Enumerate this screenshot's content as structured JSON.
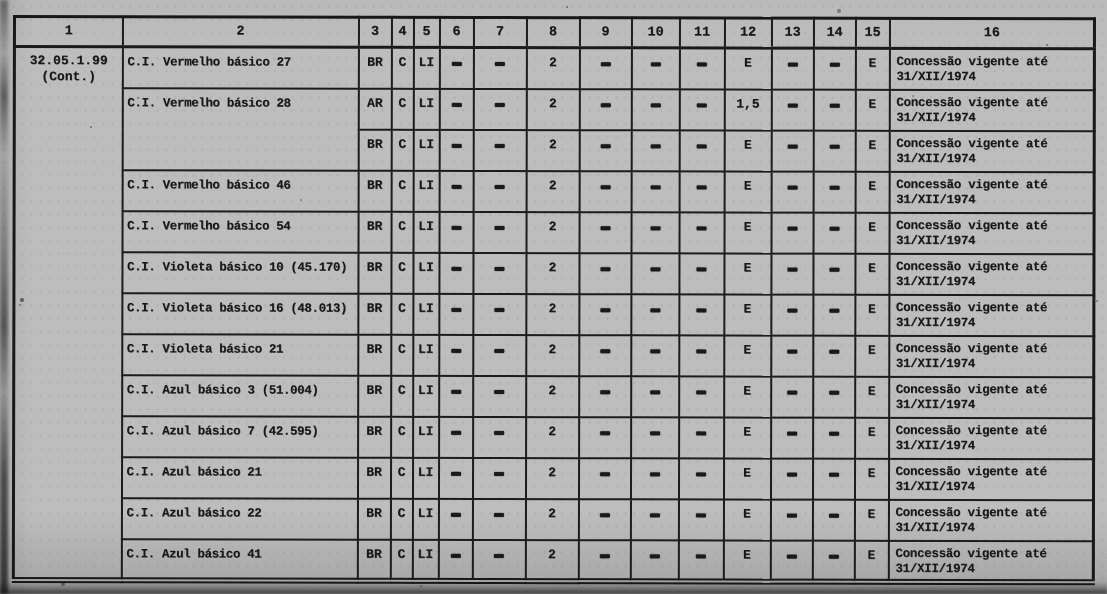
{
  "colors": {
    "paper": "#bdbdbd",
    "ink": "#1a1a1a"
  },
  "document": {
    "ref_code": {
      "line1": "32.05.1.99",
      "line2": "(Cont.)"
    },
    "column_headers": [
      "1",
      "2",
      "3",
      "4",
      "5",
      "6",
      "7",
      "8",
      "9",
      "10",
      "11",
      "12",
      "13",
      "14",
      "15",
      "16"
    ],
    "rows": [
      {
        "name": "C.I. Vermelho básico 27",
        "name_rowspan": 1,
        "values": [
          "BR",
          "C",
          "LI",
          "-",
          "-",
          "2",
          "-",
          "-",
          "-",
          "E",
          "-",
          "-",
          "E"
        ],
        "note_line1": "Concessão vigente até",
        "note_line2": "31/XII/1974"
      },
      {
        "name": "C.I. Vermelho básico 28",
        "name_rowspan": 2,
        "values": [
          "AR",
          "C",
          "LI",
          "-",
          "-",
          "2",
          "-",
          "-",
          "-",
          "1,5",
          "-",
          "-",
          "E"
        ],
        "note_line1": "Concessão vigente até",
        "note_line2": "31/XII/1974"
      },
      {
        "name": null,
        "name_rowspan": 0,
        "values": [
          "BR",
          "C",
          "LI",
          "-",
          "-",
          "2",
          "-",
          "-",
          "-",
          "E",
          "-",
          "-",
          "E"
        ],
        "note_line1": "Concessão vigente até",
        "note_line2": "31/XII/1974"
      },
      {
        "name": "C.I. Vermelho básico 46",
        "name_rowspan": 1,
        "values": [
          "BR",
          "C",
          "LI",
          "-",
          "-",
          "2",
          "-",
          "-",
          "-",
          "E",
          "-",
          "-",
          "E"
        ],
        "note_line1": "Concessão vigente até",
        "note_line2": "31/XII/1974"
      },
      {
        "name": "C.I. Vermelho básico 54",
        "name_rowspan": 1,
        "values": [
          "BR",
          "C",
          "LI",
          "-",
          "-",
          "2",
          "-",
          "-",
          "-",
          "E",
          "-",
          "-",
          "E"
        ],
        "note_line1": "Concessão vigente até",
        "note_line2": "31/XII/1974"
      },
      {
        "name": "C.I. Violeta básico 10 (45.170)",
        "name_rowspan": 1,
        "values": [
          "BR",
          "C",
          "LI",
          "-",
          "-",
          "2",
          "-",
          "-",
          "-",
          "E",
          "-",
          "-",
          "E"
        ],
        "note_line1": "Concessão vigente até",
        "note_line2": "31/XII/1974"
      },
      {
        "name": "C.I. Violeta básico 16 (48.013)",
        "name_rowspan": 1,
        "values": [
          "BR",
          "C",
          "LI",
          "-",
          "-",
          "2",
          "-",
          "-",
          "-",
          "E",
          "-",
          "-",
          "E"
        ],
        "note_line1": "Concessão vigente até",
        "note_line2": "31/XII/1974"
      },
      {
        "name": "C.I. Violeta básico 21",
        "name_rowspan": 1,
        "values": [
          "BR",
          "C",
          "LI",
          "-",
          "-",
          "2",
          "-",
          "-",
          "-",
          "E",
          "-",
          "-",
          "E"
        ],
        "note_line1": "Concessão vigente até",
        "note_line2": "31/XII/1974"
      },
      {
        "name": "C.I. Azul básico 3 (51.004)",
        "name_rowspan": 1,
        "values": [
          "BR",
          "C",
          "LI",
          "-",
          "-",
          "2",
          "-",
          "-",
          "-",
          "E",
          "-",
          "-",
          "E"
        ],
        "note_line1": "Concessão vigente até",
        "note_line2": "31/XII/1974"
      },
      {
        "name": "C.I. Azul básico 7 (42.595)",
        "name_rowspan": 1,
        "values": [
          "BR",
          "C",
          "LI",
          "-",
          "-",
          "2",
          "-",
          "-",
          "-",
          "E",
          "-",
          "-",
          "E"
        ],
        "note_line1": "Concessão vigente até",
        "note_line2": "31/XII/1974"
      },
      {
        "name": "C.I. Azul básico 21",
        "name_rowspan": 1,
        "values": [
          "BR",
          "C",
          "LI",
          "-",
          "-",
          "2",
          "-",
          "-",
          "-",
          "E",
          "-",
          "-",
          "E"
        ],
        "note_line1": "Concessão vigente até",
        "note_line2": "31/XII/1974"
      },
      {
        "name": "C.I. Azul básico 22",
        "name_rowspan": 1,
        "values": [
          "BR",
          "C",
          "LI",
          "-",
          "-",
          "2",
          "-",
          "-",
          "-",
          "E",
          "-",
          "-",
          "E"
        ],
        "note_line1": "Concessão vigente até",
        "note_line2": "31/XII/1974"
      },
      {
        "name": "C.I. Azul básico 41",
        "name_rowspan": 1,
        "values": [
          "BR",
          "C",
          "LI",
          "-",
          "-",
          "2",
          "-",
          "-",
          "-",
          "E",
          "-",
          "-",
          "E"
        ],
        "note_line1": "Concessão vigente até",
        "note_line2": "31/XII/1974"
      }
    ]
  }
}
